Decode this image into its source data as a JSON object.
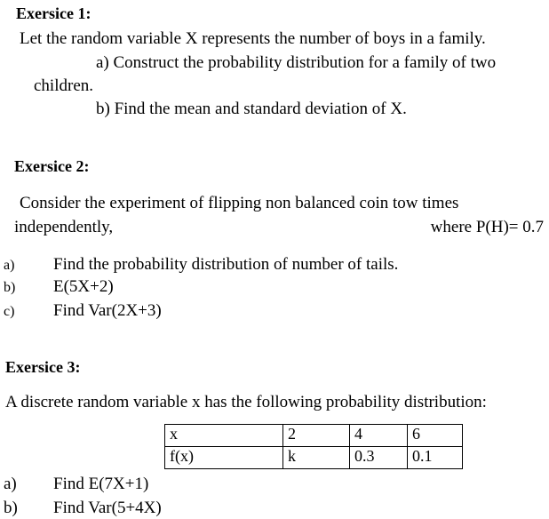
{
  "ex1": {
    "title": "Exersice 1:",
    "intro": "Let the random variable X represents the number of boys in a family.",
    "a_line1": "a) Construct the probability distribution for a family of two",
    "a_line2": "children.",
    "b": "b) Find the mean and standard deviation of X."
  },
  "ex2": {
    "title": "Exersice 2:",
    "intro_line1": "Consider the experiment of flipping non balanced coin tow times",
    "intro_line2": "independently,",
    "given": "where P(H)= 0.7",
    "items": [
      {
        "label": "a)",
        "text": "Find the probability distribution of number of tails."
      },
      {
        "label": "b)",
        "text": "E(5X+2)"
      },
      {
        "label": "c)",
        "text": "Find Var(2X+3)"
      }
    ]
  },
  "ex3": {
    "title": "Exersice 3:",
    "intro": "A discrete random variable x has the following probability distribution:",
    "table": {
      "rows": [
        [
          "x",
          "2",
          "4",
          "6"
        ],
        [
          "f(x)",
          "k",
          "0.3",
          "0.1"
        ]
      ]
    },
    "items": [
      {
        "label": "a)",
        "text": "Find E(7X+1)"
      },
      {
        "label": "b)",
        "text": "Find Var(5+4X)"
      }
    ]
  }
}
